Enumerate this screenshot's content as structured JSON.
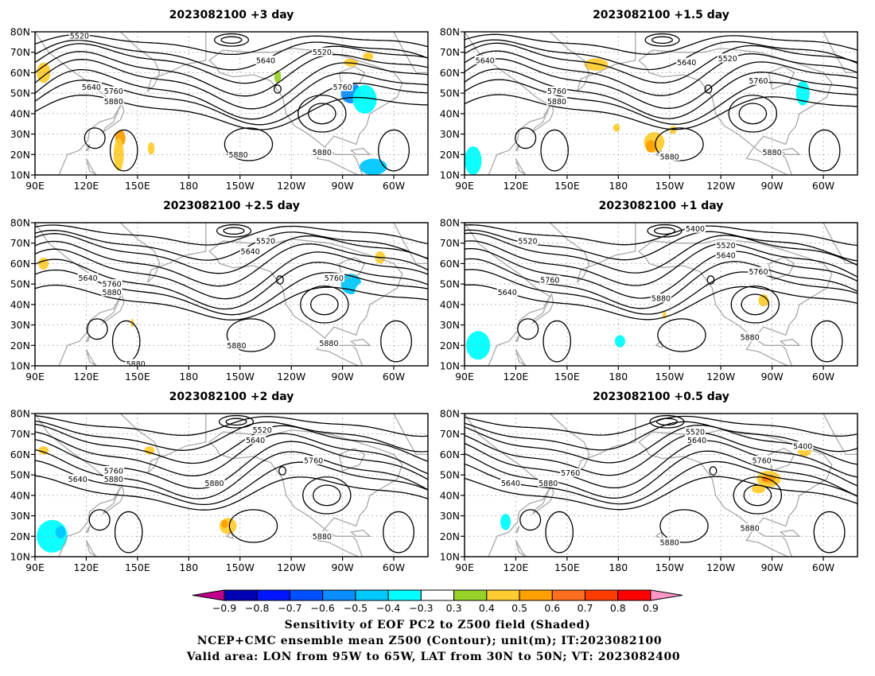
{
  "panels": [
    {
      "title": "2023082100 +3 day",
      "contour_labels": [
        {
          "text": "5520",
          "lon": 116,
          "lat": 78
        },
        {
          "text": "5520",
          "lon": 258,
          "lat": 70
        },
        {
          "text": "5640",
          "lon": 225,
          "lat": 66
        },
        {
          "text": "5640",
          "lon": 123,
          "lat": 53
        },
        {
          "text": "5760",
          "lon": 136,
          "lat": 51
        },
        {
          "text": "5760",
          "lon": 270,
          "lat": 53
        },
        {
          "text": "5880",
          "lon": 136,
          "lat": 46
        },
        {
          "text": "5880",
          "lon": 209,
          "lat": 20
        },
        {
          "text": "5880",
          "lon": 258,
          "lat": 21
        }
      ],
      "shading": [
        {
          "lon": 95,
          "lat": 60,
          "rx": 4,
          "ry": 5,
          "value": 0.4
        },
        {
          "lon": 140,
          "lat": 28,
          "rx": 3,
          "ry": 4,
          "value": 0.5
        },
        {
          "lon": 139,
          "lat": 20,
          "rx": 3,
          "ry": 8,
          "value": 0.4
        },
        {
          "lon": 158,
          "lat": 23,
          "rx": 2,
          "ry": 3,
          "value": 0.4
        },
        {
          "lon": 232,
          "lat": 58,
          "rx": 2,
          "ry": 3,
          "value": 0.3
        },
        {
          "lon": 255,
          "lat": 45,
          "rx": 6,
          "ry": 5,
          "value": -0.3
        },
        {
          "lon": 275,
          "lat": 50,
          "rx": 6,
          "ry": 5,
          "value": -0.6
        },
        {
          "lon": 283,
          "lat": 47,
          "rx": 7,
          "ry": 7,
          "value": -0.4
        },
        {
          "lon": 288,
          "lat": 14,
          "rx": 8,
          "ry": 4,
          "value": -0.5
        },
        {
          "lon": 275,
          "lat": 65,
          "rx": 4,
          "ry": 2,
          "value": 0.4
        },
        {
          "lon": 285,
          "lat": 68,
          "rx": 3,
          "ry": 2,
          "value": 0.4
        },
        {
          "lon": 200,
          "lat": 32,
          "rx": 2,
          "ry": 3,
          "value": -0.3
        },
        {
          "lon": 208,
          "lat": 72,
          "rx": 4,
          "ry": 2,
          "value": -0.3
        }
      ]
    },
    {
      "title": "2023082100 +1.5 day",
      "contour_labels": [
        {
          "text": "5640",
          "lon": 102,
          "lat": 66
        },
        {
          "text": "5640",
          "lon": 220,
          "lat": 65
        },
        {
          "text": "5520",
          "lon": 244,
          "lat": 67
        },
        {
          "text": "5760",
          "lon": 144,
          "lat": 51
        },
        {
          "text": "5880",
          "lon": 144,
          "lat": 46
        },
        {
          "text": "5760",
          "lon": 262,
          "lat": 56
        },
        {
          "text": "5880",
          "lon": 210,
          "lat": 19
        },
        {
          "text": "5880",
          "lon": 270,
          "lat": 21
        }
      ],
      "shading": [
        {
          "lon": 167,
          "lat": 64,
          "rx": 7,
          "ry": 3,
          "value": 0.4
        },
        {
          "lon": 201,
          "lat": 26,
          "rx": 6,
          "ry": 5,
          "value": 0.4
        },
        {
          "lon": 199,
          "lat": 24,
          "rx": 3,
          "ry": 3,
          "value": 0.5
        },
        {
          "lon": 212,
          "lat": 32,
          "rx": 2,
          "ry": 2,
          "value": 0.4
        },
        {
          "lon": 95,
          "lat": 17,
          "rx": 5,
          "ry": 7,
          "value": -0.4
        },
        {
          "lon": 110,
          "lat": 23,
          "rx": 3,
          "ry": 6,
          "value": -0.3
        },
        {
          "lon": 288,
          "lat": 50,
          "rx": 4,
          "ry": 6,
          "value": -0.4
        },
        {
          "lon": 261,
          "lat": 41,
          "rx": 3,
          "ry": 3,
          "value": -0.3
        },
        {
          "lon": 179,
          "lat": 33,
          "rx": 2,
          "ry": 2,
          "value": 0.4
        }
      ]
    },
    {
      "title": "2023082100 +2.5 day",
      "contour_labels": [
        {
          "text": "5520",
          "lon": 225,
          "lat": 71
        },
        {
          "text": "5640",
          "lon": 216,
          "lat": 66
        },
        {
          "text": "5640",
          "lon": 121,
          "lat": 53
        },
        {
          "text": "5760",
          "lon": 135,
          "lat": 50
        },
        {
          "text": "5880",
          "lon": 135,
          "lat": 46
        },
        {
          "text": "5760",
          "lon": 265,
          "lat": 53
        },
        {
          "text": "5880",
          "lon": 208,
          "lat": 20
        },
        {
          "text": "5880",
          "lon": 262,
          "lat": 21
        },
        {
          "text": "5880",
          "lon": 149,
          "lat": 11
        }
      ],
      "shading": [
        {
          "lon": 95,
          "lat": 60,
          "rx": 3,
          "ry": 3,
          "value": 0.4
        },
        {
          "lon": 98,
          "lat": 18,
          "rx": 5,
          "ry": 3,
          "value": -0.3
        },
        {
          "lon": 147,
          "lat": 31,
          "rx": 1,
          "ry": 2,
          "value": 0.4
        },
        {
          "lon": 225,
          "lat": 35,
          "rx": 6,
          "ry": 4,
          "value": -0.3
        },
        {
          "lon": 275,
          "lat": 50,
          "rx": 6,
          "ry": 5,
          "value": -0.5
        },
        {
          "lon": 283,
          "lat": 45,
          "rx": 6,
          "ry": 6,
          "value": -0.3
        },
        {
          "lon": 292,
          "lat": 63,
          "rx": 3,
          "ry": 3,
          "value": 0.4
        },
        {
          "lon": 198,
          "lat": 47,
          "rx": 2,
          "ry": 2,
          "value": -0.3
        },
        {
          "lon": 285,
          "lat": 14,
          "rx": 4,
          "ry": 3,
          "value": -0.3
        }
      ]
    },
    {
      "title": "2023082100 +1 day",
      "contour_labels": [
        {
          "text": "5520",
          "lon": 127,
          "lat": 71
        },
        {
          "text": "5400",
          "lon": 225,
          "lat": 77
        },
        {
          "text": "5520",
          "lon": 243,
          "lat": 69
        },
        {
          "text": "5640",
          "lon": 243,
          "lat": 64
        },
        {
          "text": "5760",
          "lon": 140,
          "lat": 52
        },
        {
          "text": "5640",
          "lon": 115,
          "lat": 46
        },
        {
          "text": "5760",
          "lon": 262,
          "lat": 56
        },
        {
          "text": "5880",
          "lon": 205,
          "lat": 43
        },
        {
          "text": "5880",
          "lon": 257,
          "lat": 24
        }
      ],
      "shading": [
        {
          "lon": 98,
          "lat": 20,
          "rx": 7,
          "ry": 7,
          "value": -0.4
        },
        {
          "lon": 110,
          "lat": 30,
          "rx": 4,
          "ry": 5,
          "value": -0.3
        },
        {
          "lon": 168,
          "lat": 18,
          "rx": 14,
          "ry": 6,
          "value": -0.3
        },
        {
          "lon": 181,
          "lat": 22,
          "rx": 3,
          "ry": 3,
          "value": -0.4
        },
        {
          "lon": 196,
          "lat": 48,
          "rx": 4,
          "ry": 2,
          "value": -0.3
        },
        {
          "lon": 265,
          "lat": 42,
          "rx": 3,
          "ry": 3,
          "value": 0.4
        },
        {
          "lon": 295,
          "lat": 50,
          "rx": 4,
          "ry": 4,
          "value": -0.3
        },
        {
          "lon": 207,
          "lat": 35,
          "rx": 1,
          "ry": 2,
          "value": 0.4
        }
      ]
    },
    {
      "title": "2023082100 +2 day",
      "contour_labels": [
        {
          "text": "5520",
          "lon": 223,
          "lat": 72
        },
        {
          "text": "5640",
          "lon": 219,
          "lat": 67
        },
        {
          "text": "5640",
          "lon": 115,
          "lat": 48
        },
        {
          "text": "5760",
          "lon": 136,
          "lat": 52
        },
        {
          "text": "5880",
          "lon": 136,
          "lat": 48
        },
        {
          "text": "5760",
          "lon": 253,
          "lat": 57
        },
        {
          "text": "5880",
          "lon": 195,
          "lat": 46
        },
        {
          "text": "5880",
          "lon": 258,
          "lat": 20
        }
      ],
      "shading": [
        {
          "lon": 100,
          "lat": 20,
          "rx": 9,
          "ry": 8,
          "value": -0.4
        },
        {
          "lon": 105,
          "lat": 22,
          "rx": 3,
          "ry": 3,
          "value": -0.5
        },
        {
          "lon": 157,
          "lat": 62,
          "rx": 3,
          "ry": 2,
          "value": 0.4
        },
        {
          "lon": 203,
          "lat": 25,
          "rx": 5,
          "ry": 4,
          "value": 0.4
        },
        {
          "lon": 201,
          "lat": 26,
          "rx": 2,
          "ry": 2,
          "value": 0.5
        },
        {
          "lon": 245,
          "lat": 75,
          "rx": 9,
          "ry": 3,
          "value": -0.3
        },
        {
          "lon": 182,
          "lat": 53,
          "rx": 2,
          "ry": 3,
          "value": -0.3
        },
        {
          "lon": 243,
          "lat": 50,
          "rx": 3,
          "ry": 3,
          "value": -0.3
        },
        {
          "lon": 95,
          "lat": 62,
          "rx": 3,
          "ry": 2,
          "value": 0.4
        }
      ]
    },
    {
      "title": "2023082100 +0.5 day",
      "contour_labels": [
        {
          "text": "5520",
          "lon": 225,
          "lat": 71
        },
        {
          "text": "5640",
          "lon": 226,
          "lat": 67
        },
        {
          "text": "5400",
          "lon": 288,
          "lat": 64
        },
        {
          "text": "5760",
          "lon": 264,
          "lat": 57
        },
        {
          "text": "5640",
          "lon": 117,
          "lat": 46
        },
        {
          "text": "5760",
          "lon": 152,
          "lat": 51
        },
        {
          "text": "5880",
          "lon": 139,
          "lat": 46
        },
        {
          "text": "5880",
          "lon": 257,
          "lat": 24
        },
        {
          "text": "5880",
          "lon": 210,
          "lat": 17
        }
      ],
      "shading": [
        {
          "lon": 108,
          "lat": 22,
          "rx": 8,
          "ry": 8,
          "value": -0.3
        },
        {
          "lon": 114,
          "lat": 27,
          "rx": 3,
          "ry": 4,
          "value": -0.4
        },
        {
          "lon": 268,
          "lat": 48,
          "rx": 7,
          "ry": 4,
          "value": 0.4
        },
        {
          "lon": 268,
          "lat": 48,
          "rx": 4,
          "ry": 2,
          "value": 0.5
        },
        {
          "lon": 266,
          "lat": 48,
          "rx": 2,
          "ry": 1,
          "value": 0.6
        },
        {
          "lon": 262,
          "lat": 43,
          "rx": 4,
          "ry": 2,
          "value": 0.4
        },
        {
          "lon": 289,
          "lat": 62,
          "rx": 4,
          "ry": 3,
          "value": 0.4
        },
        {
          "lon": 172,
          "lat": 48,
          "rx": 4,
          "ry": 2,
          "value": -0.3
        },
        {
          "lon": 185,
          "lat": 26,
          "rx": 1,
          "ry": 2,
          "value": -0.3
        }
      ]
    }
  ],
  "lon_ticks": [
    {
      "lon": 90,
      "label": "90E"
    },
    {
      "lon": 120,
      "label": "120E"
    },
    {
      "lon": 150,
      "label": "150E"
    },
    {
      "lon": 180,
      "label": "180"
    },
    {
      "lon": 210,
      "label": "150W"
    },
    {
      "lon": 240,
      "label": "120W"
    },
    {
      "lon": 270,
      "label": "90W"
    },
    {
      "lon": 300,
      "label": "60W"
    }
  ],
  "lat_ticks": [
    {
      "lat": 10,
      "label": "10N"
    },
    {
      "lat": 20,
      "label": "20N"
    },
    {
      "lat": 30,
      "label": "30N"
    },
    {
      "lat": 40,
      "label": "40N"
    },
    {
      "lat": 50,
      "label": "50N"
    },
    {
      "lat": 60,
      "label": "60N"
    },
    {
      "lat": 70,
      "label": "70N"
    },
    {
      "lat": 80,
      "label": "80N"
    }
  ],
  "lon_range": [
    90,
    320
  ],
  "lat_range": [
    10,
    80
  ],
  "colorbar": {
    "levels": [
      -0.9,
      -0.8,
      -0.7,
      -0.6,
      -0.5,
      -0.4,
      -0.3,
      0.3,
      0.4,
      0.5,
      0.6,
      0.7,
      0.8,
      0.9
    ],
    "labels": [
      "−0.9",
      "−0.8",
      "−0.7",
      "−0.6",
      "−0.5",
      "−0.4",
      "−0.3",
      "0.3",
      "0.4",
      "0.5",
      "0.6",
      "0.7",
      "0.8",
      "0.9"
    ],
    "colors": [
      "#c0008c",
      "#0000b4",
      "#0014ff",
      "#0050ff",
      "#0a8cff",
      "#00c8ff",
      "#00ffff",
      "#ffffff",
      "#96d228",
      "#ffcd32",
      "#ffa000",
      "#ff6e1e",
      "#ff3c00",
      "#ff0000",
      "#ff96c8"
    ]
  },
  "footer": {
    "line1": "Sensitivity of EOF PC2 to Z500 field (Shaded)",
    "line2": "NCEP+CMC ensemble mean Z500 (Contour); unit(m); IT:2023082100",
    "line3": "Valid area: LON from 95W to 65W, LAT from 30N to 50N; VT: 2023082400"
  }
}
